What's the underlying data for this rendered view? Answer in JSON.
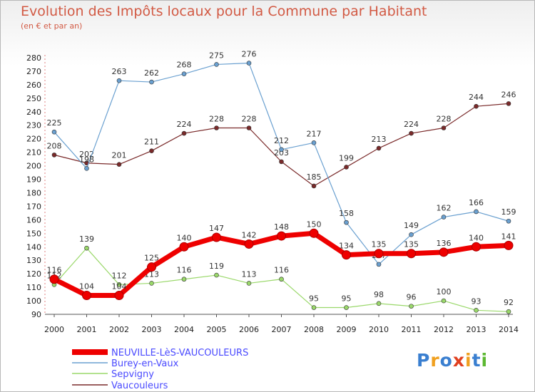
{
  "title": "Evolution des Impôts locaux pour la Commune par Habitant",
  "subtitle": "(en € et par an)",
  "logo_text": "Proxiti",
  "chart_data": {
    "type": "line",
    "title": "Evolution des Impôts locaux pour la Commune par Habitant",
    "subtitle": "(en € et par an)",
    "xlabel": "",
    "ylabel": "",
    "x": [
      2000,
      2001,
      2002,
      2003,
      2004,
      2005,
      2006,
      2007,
      2008,
      2009,
      2010,
      2011,
      2012,
      2013,
      2014
    ],
    "ylim": [
      90,
      280
    ],
    "ytick_step": 10,
    "grid": false,
    "legend_position": "bottom-left",
    "series": [
      {
        "name": "NEUVILLE-LèS-VAUCOULEURS",
        "color": "#ee0000",
        "values": [
          116,
          104,
          104,
          125,
          140,
          147,
          142,
          148,
          150,
          134,
          135,
          135,
          136,
          140,
          141
        ]
      },
      {
        "name": "Burey-en-Vaux",
        "color": "#6aa0d0",
        "values": [
          225,
          198,
          263,
          262,
          268,
          275,
          276,
          212,
          217,
          158,
          127,
          149,
          162,
          166,
          159
        ]
      },
      {
        "name": "Sepvigny",
        "color": "#9ad86a",
        "values": [
          112,
          139,
          112,
          113,
          116,
          119,
          113,
          116,
          95,
          95,
          98,
          96,
          100,
          93,
          92
        ]
      },
      {
        "name": "Vaucouleurs",
        "color": "#7a2a2a",
        "values": [
          208,
          202,
          201,
          211,
          224,
          228,
          228,
          203,
          185,
          199,
          213,
          224,
          228,
          244,
          246
        ]
      }
    ]
  }
}
